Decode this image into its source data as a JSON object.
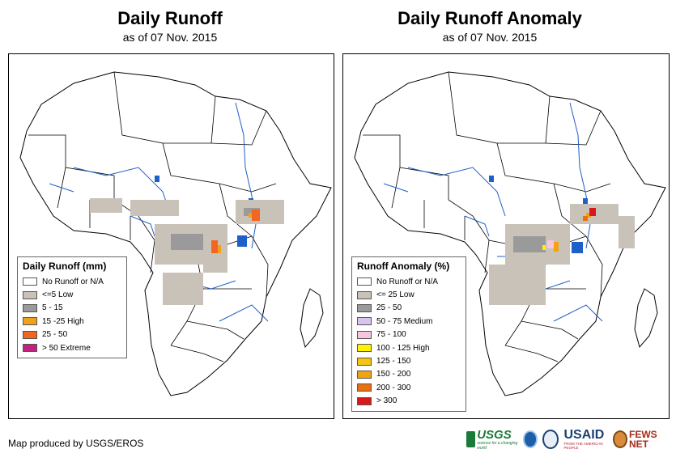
{
  "panels": [
    {
      "title": "Daily Runoff",
      "subtitle": "as of 07 Nov. 2015",
      "legend": {
        "title": "Daily Runoff (mm)",
        "items": [
          {
            "label": "No Runoff or N/A",
            "color": "#ffffff"
          },
          {
            "label": "<=5 Low",
            "color": "#c9c2b8"
          },
          {
            "label": "5 - 15",
            "color": "#9a9a9a"
          },
          {
            "label": "15 -25 High",
            "color": "#f0a21b"
          },
          {
            "label": "25 - 50",
            "color": "#f26522"
          },
          {
            "label": "> 50 Extreme",
            "color": "#c2217f"
          }
        ]
      }
    },
    {
      "title": "Daily Runoff Anomaly",
      "subtitle": "as of 07 Nov. 2015",
      "legend": {
        "title": "Runoff Anomaly (%)",
        "items": [
          {
            "label": "No Runoff or N/A",
            "color": "#ffffff"
          },
          {
            "label": "<= 25 Low",
            "color": "#c9c2b8"
          },
          {
            "label": "25 - 50",
            "color": "#9a9a9a"
          },
          {
            "label": "50 - 75 Medium",
            "color": "#d9c4ef"
          },
          {
            "label": "75 - 100",
            "color": "#f7c6dc"
          },
          {
            "label": "100 - 125 High",
            "color": "#fff200"
          },
          {
            "label": "125 - 150",
            "color": "#f7c511"
          },
          {
            "label": "150 - 200",
            "color": "#f2a30f"
          },
          {
            "label": "200 - 300",
            "color": "#e8700e"
          },
          {
            "label": "> 300",
            "color": "#d7191c"
          }
        ]
      }
    }
  ],
  "credit": "Map produced by USGS/EROS",
  "logos": {
    "usgs": "USGS",
    "usgs_tagline": "science for a changing world",
    "usaid": "USAID",
    "usaid_tagline": "FROM THE AMERICAN PEOPLE",
    "fews": "FEWS NET"
  },
  "colors": {
    "water": "#1f5fc9",
    "border": "#000000",
    "land": "#ffffff"
  }
}
